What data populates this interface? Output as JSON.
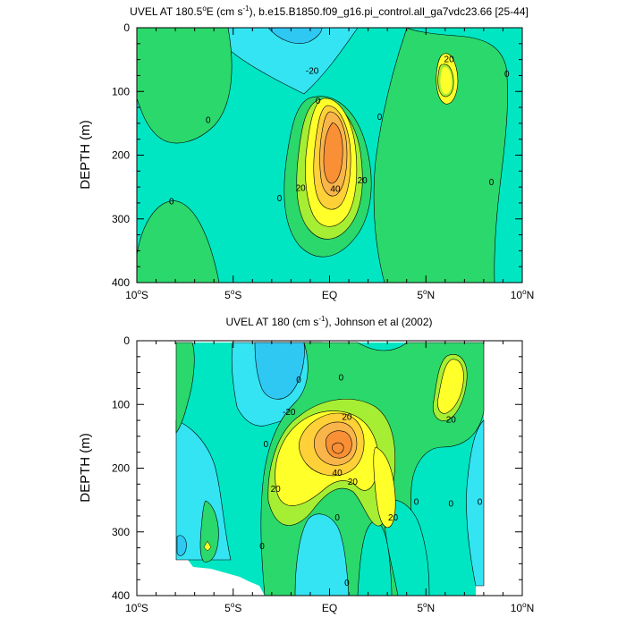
{
  "chart_data": [
    {
      "type": "heatmap",
      "title": "UVEL AT 180.5°E (cm s⁻¹), b.e15.B1850.f09_g16.pi_control.all_ga7vdc23.66 [25-44]",
      "title_parts": {
        "prefix": "UVEL AT 180.5",
        "sup1": "o",
        "middle": "E (cm s",
        "sup2": "-1",
        "suffix": "), b.e15.B1850.f09_g16.pi_control.all_ga7vdc23.66 [25-44]"
      },
      "ylabel": "DEPTH (m)",
      "xlabel": "",
      "x_ticks": [
        {
          "value": -10,
          "num": "10",
          "deg": "o",
          "hem": "S"
        },
        {
          "value": -5,
          "num": "5",
          "deg": "o",
          "hem": "S"
        },
        {
          "value": 0,
          "num": "EQ",
          "deg": "",
          "hem": ""
        },
        {
          "value": 5,
          "num": "5",
          "deg": "o",
          "hem": "N"
        },
        {
          "value": 10,
          "num": "10",
          "deg": "o",
          "hem": "N"
        }
      ],
      "y_ticks": [
        "0",
        "100",
        "200",
        "300",
        "400"
      ],
      "y_tick_values": [
        0,
        100,
        200,
        300,
        400
      ],
      "xlim": [
        -10,
        10
      ],
      "ylim": [
        400,
        0
      ],
      "contour_labels": [
        {
          "text": "-20",
          "x": -0.9,
          "y": 68
        },
        {
          "text": "0",
          "x": -6.3,
          "y": 145
        },
        {
          "text": "0",
          "x": -8.2,
          "y": 273
        },
        {
          "text": "0",
          "x": -2.6,
          "y": 268
        },
        {
          "text": "0",
          "x": -0.6,
          "y": 115
        },
        {
          "text": "0",
          "x": 2.6,
          "y": 140
        },
        {
          "text": "20",
          "x": -1.5,
          "y": 252
        },
        {
          "text": "40",
          "x": 0.3,
          "y": 253
        },
        {
          "text": "20",
          "x": 1.7,
          "y": 240
        },
        {
          "text": "20",
          "x": 6.2,
          "y": 50
        },
        {
          "text": "0",
          "x": 9.2,
          "y": 73
        },
        {
          "text": "0",
          "x": 8.4,
          "y": 243
        }
      ]
    },
    {
      "type": "heatmap",
      "title": "UVEL AT 180 (cm s⁻¹), Johnson et al (2002)",
      "title_parts": {
        "prefix": "UVEL AT 180 (cm s",
        "sup1": "-1",
        "suffix": "), Johnson et al (2002)"
      },
      "ylabel": "DEPTH (m)",
      "xlabel": "",
      "x_ticks": [
        {
          "value": -10,
          "num": "10",
          "deg": "o",
          "hem": "S"
        },
        {
          "value": -5,
          "num": "5",
          "deg": "o",
          "hem": "S"
        },
        {
          "value": 0,
          "num": "EQ",
          "deg": "",
          "hem": ""
        },
        {
          "value": 5,
          "num": "5",
          "deg": "o",
          "hem": "N"
        },
        {
          "value": 10,
          "num": "10",
          "deg": "o",
          "hem": "N"
        }
      ],
      "y_ticks": [
        "0",
        "100",
        "200",
        "300",
        "400"
      ],
      "y_tick_values": [
        0,
        100,
        200,
        300,
        400
      ],
      "xlim": [
        -10,
        10
      ],
      "ylim": [
        400,
        0
      ],
      "contour_labels": [
        {
          "text": "-20",
          "x": -2.1,
          "y": 112
        },
        {
          "text": "0",
          "x": -1.6,
          "y": 62
        },
        {
          "text": "0",
          "x": 0.6,
          "y": 58
        },
        {
          "text": "20",
          "x": 0.9,
          "y": 120
        },
        {
          "text": "0",
          "x": -3.3,
          "y": 163
        },
        {
          "text": "20",
          "x": -2.8,
          "y": 233
        },
        {
          "text": "40",
          "x": 0.4,
          "y": 208
        },
        {
          "text": "20",
          "x": 1.2,
          "y": 222
        },
        {
          "text": "20",
          "x": 3.3,
          "y": 278
        },
        {
          "text": "0",
          "x": -3.5,
          "y": 323
        },
        {
          "text": "0",
          "x": 0.4,
          "y": 278
        },
        {
          "text": "0",
          "x": 4.5,
          "y": 253
        },
        {
          "text": "0",
          "x": 6.3,
          "y": 256
        },
        {
          "text": "0",
          "x": 7.8,
          "y": 253
        },
        {
          "text": "20",
          "x": 6.3,
          "y": 124
        },
        {
          "text": "0",
          "x": 0.9,
          "y": 380
        }
      ]
    }
  ]
}
